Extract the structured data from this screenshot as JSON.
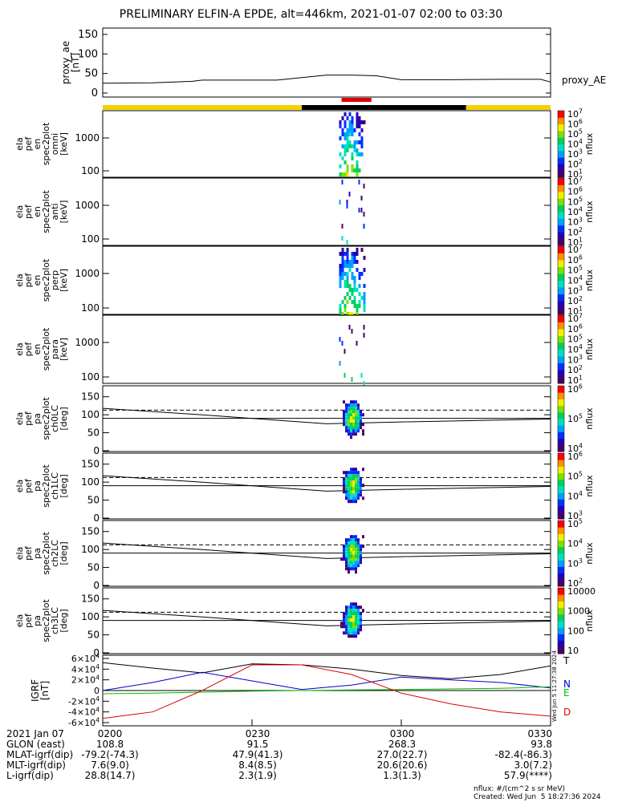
{
  "title": "PRELIMINARY ELFIN-A EPDE, alt=446km, 2021-01-07 02:00 to 03:30",
  "chart_data": [
    {
      "type": "line",
      "panel": "proxy_ae",
      "ylabel_lines": [
        "proxy_ae",
        "[nT]"
      ],
      "legend": "proxy_AE",
      "ylim": [
        0,
        160
      ],
      "ytick_labels": [
        "0",
        "50",
        "100",
        "150"
      ],
      "x_minutes": [
        0,
        10,
        18,
        20,
        28,
        35,
        42,
        45,
        50,
        55,
        60,
        70,
        80,
        88,
        90
      ],
      "values": [
        25,
        26,
        30,
        33,
        33,
        33,
        42,
        46,
        46,
        44,
        34,
        34,
        35,
        35,
        28
      ]
    },
    {
      "type": "heatmap",
      "panel": "omni",
      "ylabel_lines": [
        "ela",
        "pef",
        "en",
        "spec2plot",
        "omni",
        "[keV]"
      ],
      "ytick_labels": [
        "100",
        "1000"
      ],
      "colorbar_label": "nflux",
      "colorbar_ticks": [
        "10^1",
        "10^2",
        "10^3",
        "10^4",
        "10^5",
        "10^6",
        "10^7"
      ]
    },
    {
      "type": "heatmap",
      "panel": "anti",
      "ylabel_lines": [
        "ela",
        "pef",
        "en",
        "spec2plot",
        "anti",
        "[keV]"
      ],
      "ytick_labels": [
        "100",
        "1000"
      ],
      "colorbar_label": "nflux",
      "colorbar_ticks": [
        "10^1",
        "10^2",
        "10^3",
        "10^4",
        "10^5",
        "10^6",
        "10^7"
      ]
    },
    {
      "type": "heatmap",
      "panel": "perp",
      "ylabel_lines": [
        "ela",
        "pef",
        "en",
        "spec2plot",
        "perp",
        "[keV]"
      ],
      "ytick_labels": [
        "100",
        "1000"
      ],
      "colorbar_label": "nflux",
      "colorbar_ticks": [
        "10^1",
        "10^2",
        "10^3",
        "10^4",
        "10^5",
        "10^6",
        "10^7"
      ]
    },
    {
      "type": "heatmap",
      "panel": "para",
      "ylabel_lines": [
        "ela",
        "pef",
        "en",
        "spec2plot",
        "para",
        "[keV]"
      ],
      "ytick_labels": [
        "100",
        "1000"
      ],
      "colorbar_label": "nflux",
      "colorbar_ticks": [
        "10^1",
        "10^2",
        "10^3",
        "10^4",
        "10^5",
        "10^6",
        "10^7"
      ]
    },
    {
      "type": "heatmap",
      "panel": "ch0LC",
      "ylabel_lines": [
        "ela",
        "pef",
        "pa",
        "spec2plot",
        "ch0LC",
        "[deg]"
      ],
      "ytick_labels": [
        "0",
        "50",
        "100",
        "150"
      ],
      "colorbar_label": "nflux",
      "colorbar_ticks": [
        "10^4",
        "10^5",
        "10^6"
      ]
    },
    {
      "type": "heatmap",
      "panel": "ch1LC",
      "ylabel_lines": [
        "ela",
        "pef",
        "pa",
        "spec2plot",
        "ch1LC",
        "[deg]"
      ],
      "ytick_labels": [
        "0",
        "50",
        "100",
        "150"
      ],
      "colorbar_label": "nflux",
      "colorbar_ticks": [
        "10^3",
        "10^4",
        "10^5",
        "10^6"
      ]
    },
    {
      "type": "heatmap",
      "panel": "ch2LC",
      "ylabel_lines": [
        "ela",
        "pef",
        "pa",
        "spec2plot",
        "ch2LC",
        "[deg]"
      ],
      "ytick_labels": [
        "0",
        "50",
        "100",
        "150"
      ],
      "colorbar_label": "nflux",
      "colorbar_ticks": [
        "10^2",
        "10^3",
        "10^4",
        "10^5"
      ]
    },
    {
      "type": "heatmap",
      "panel": "ch3LC",
      "ylabel_lines": [
        "ela",
        "pef",
        "pa",
        "spec2plot",
        "ch3LC",
        "[deg]"
      ],
      "ytick_labels": [
        "0",
        "50",
        "100",
        "150"
      ],
      "colorbar_label": "nflux",
      "colorbar_ticks": [
        "10",
        "100",
        "1000",
        "10000"
      ]
    },
    {
      "type": "line",
      "panel": "IGRF",
      "ylabel_lines": [
        "IGRF",
        "[nT]"
      ],
      "ylim": [
        -60000,
        60000
      ],
      "ytick_labels": [
        "-6×10^4",
        "-4×10^4",
        "-2×10^4",
        "0",
        "2×10^4",
        "4×10^4",
        "6×10^4"
      ],
      "x_minutes": [
        0,
        10,
        20,
        30,
        40,
        50,
        60,
        70,
        80,
        90
      ],
      "series": [
        {
          "name": "T",
          "color": "#000000",
          "values": [
            52000,
            42000,
            33000,
            50000,
            48000,
            40000,
            28000,
            22000,
            30000,
            46000
          ]
        },
        {
          "name": "N",
          "color": "#0000cc",
          "values": [
            0,
            15000,
            34000,
            18000,
            2000,
            10000,
            25000,
            20000,
            15000,
            5000
          ]
        },
        {
          "name": "E",
          "color": "#00bb00",
          "values": [
            -6000,
            -5000,
            -3000,
            -1000,
            0,
            1000,
            2000,
            3000,
            4000,
            7000
          ]
        },
        {
          "name": "D",
          "color": "#dd0000",
          "values": [
            -52000,
            -40000,
            0,
            48000,
            48000,
            30000,
            -5000,
            -25000,
            -40000,
            -48000
          ]
        }
      ]
    }
  ],
  "xaxis": {
    "rows": [
      {
        "label": "2021 Jan 07",
        "values": [
          "0200",
          "0230",
          "0300",
          "0330"
        ]
      },
      {
        "label": "GLON (east)",
        "values": [
          "108.8",
          "91.5",
          "268.3",
          "93.8"
        ]
      },
      {
        "label": "MLAT-igrf(dip)",
        "values": [
          "-79.2(-74.3)",
          "47.9(41.3)",
          "27.0(22.7)",
          "-82.4(-86.3)"
        ]
      },
      {
        "label": "MLT-igrf(dip)",
        "values": [
          "7.6(9.0)",
          "8.4(8.5)",
          "20.6(20.6)",
          "3.0(7.2)"
        ]
      },
      {
        "label": "L-igrf(dip)",
        "values": [
          "28.8(14.7)",
          "2.3(1.9)",
          "1.3(1.3)",
          "57.9(****)"
        ]
      }
    ]
  },
  "footer": {
    "units": "nflux: #/(cm^2 s sr MeV)",
    "created": "Created: Wed Jun  5 18:27:36 2024",
    "side_stamp": "Wed Jun  5 11:27:38 2024"
  }
}
